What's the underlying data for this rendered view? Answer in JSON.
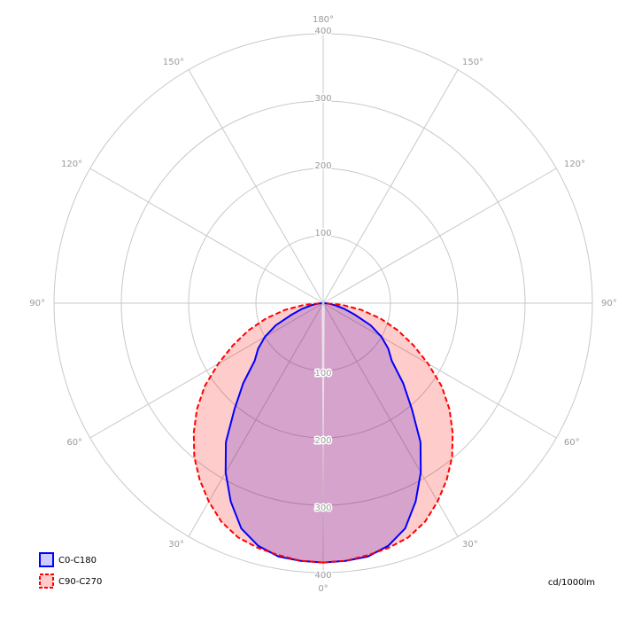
{
  "chart_data": {
    "type": "polar",
    "unit_label": "cd/1000lm",
    "angles": [
      0,
      5,
      10,
      15,
      20,
      25,
      30,
      35,
      40,
      45,
      50,
      55,
      60,
      65,
      70,
      75,
      80,
      85,
      90
    ],
    "series": [
      {
        "name": "C0-C180",
        "color": "#0000ff",
        "dashed": false,
        "values": [
          385,
          384,
          382,
          373,
          356,
          325,
          290,
          252,
          205,
          168,
          133,
          118,
          100,
          78,
          50,
          32,
          18,
          8,
          2
        ]
      },
      {
        "name": "C90-C270",
        "color": "#ff0000",
        "dashed": true,
        "values": [
          385,
          384,
          380,
          376,
          370,
          358,
          340,
          320,
          298,
          272,
          245,
          215,
          180,
          148,
          118,
          88,
          58,
          28,
          2
        ]
      }
    ],
    "rlim": [
      0,
      400
    ],
    "rticks": [
      100,
      200,
      300,
      400
    ],
    "angle_ticks": [
      {
        "value": 0,
        "label": "0°"
      },
      {
        "value": 30,
        "label": "30°"
      },
      {
        "value": 60,
        "label": "60°"
      },
      {
        "value": 90,
        "label": "90°"
      },
      {
        "value": 120,
        "label": "120°"
      },
      {
        "value": 150,
        "label": "150°"
      },
      {
        "value": 180,
        "label": "180°"
      }
    ],
    "grid": true,
    "legend": "bottom-left"
  }
}
